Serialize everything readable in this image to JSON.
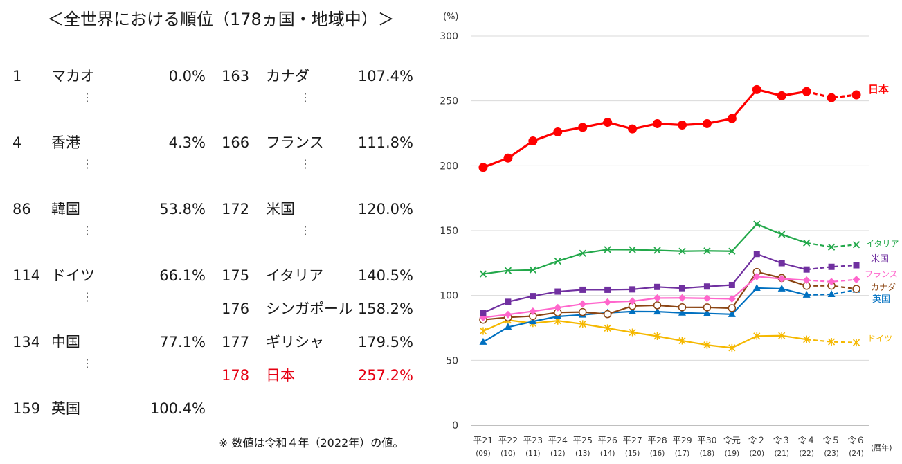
{
  "title": "＜全世界における順位（178ヵ国・地域中）＞",
  "footnote": "※ 数値は令和４年（2022年）の値。",
  "ranking_left": [
    {
      "rank": "1",
      "country": "マカオ",
      "value": "0.0%"
    },
    {
      "rank": "4",
      "country": "香港",
      "value": "4.3%"
    },
    {
      "rank": "86",
      "country": "韓国",
      "value": "53.8%"
    },
    {
      "rank": "114",
      "country": "ドイツ",
      "value": "66.1%"
    },
    {
      "rank": "134",
      "country": "中国",
      "value": "77.1%"
    },
    {
      "rank": "159",
      "country": "英国",
      "value": "100.4%"
    }
  ],
  "ranking_right": [
    {
      "rank": "163",
      "country": "カナダ",
      "value": "107.4%"
    },
    {
      "rank": "166",
      "country": "フランス",
      "value": "111.8%"
    },
    {
      "rank": "172",
      "country": "米国",
      "value": "120.0%"
    },
    {
      "rank": "175",
      "country": "イタリア",
      "value": "140.5%"
    },
    {
      "rank": "176",
      "country": "シンガポール",
      "value": "158.2%"
    },
    {
      "rank": "177",
      "country": "ギリシャ",
      "value": "179.5%"
    },
    {
      "rank": "178",
      "country": "日本",
      "value": "257.2%"
    }
  ],
  "ellipsis": "⋮",
  "chart_data": {
    "type": "line",
    "ylabel": "(%)",
    "xlabel": "(暦年)",
    "ylim": [
      0,
      300
    ],
    "yticks": [
      "0",
      "50",
      "100",
      "150",
      "200",
      "250",
      "300"
    ],
    "categories": [
      "平21",
      "平22",
      "平23",
      "平24",
      "平25",
      "平26",
      "平27",
      "平28",
      "平29",
      "平30",
      "令元",
      "令２",
      "令３",
      "令４",
      "令５",
      "令６"
    ],
    "subcategories": [
      "(09)",
      "(10)",
      "(11)",
      "(12)",
      "(13)",
      "(14)",
      "(15)",
      "(16)",
      "(17)",
      "(18)",
      "(19)",
      "(20)",
      "(21)",
      "(22)",
      "(23)",
      "(24)"
    ],
    "forecast_from_index": 13,
    "series": [
      {
        "name": "日本",
        "color": "#ff0000",
        "marker": "circle-filled",
        "values": [
          198.7,
          205.9,
          219.1,
          226.1,
          229.6,
          233.5,
          228.4,
          232.5,
          231.4,
          232.5,
          236.4,
          258.7,
          253.9,
          257.2,
          252.4,
          254.6
        ]
      },
      {
        "name": "イタリア",
        "color": "#22a84a",
        "marker": "cross",
        "values": [
          116.6,
          119.2,
          119.7,
          126.5,
          132.5,
          135.4,
          135.3,
          134.8,
          134.1,
          134.4,
          134.1,
          155.0,
          147.1,
          140.5,
          137.3,
          139.2
        ]
      },
      {
        "name": "米国",
        "color": "#7030a0",
        "marker": "square",
        "values": [
          86.6,
          95.1,
          99.5,
          103.0,
          104.4,
          104.4,
          104.7,
          106.6,
          105.6,
          106.9,
          108.1,
          132.0,
          124.9,
          120.0,
          122.1,
          123.3
        ]
      },
      {
        "name": "フランス",
        "color": "#ff66cc",
        "marker": "diamond",
        "values": [
          83.0,
          85.3,
          87.8,
          90.6,
          93.4,
          94.9,
          95.6,
          98.0,
          98.1,
          97.8,
          97.4,
          114.6,
          112.9,
          111.8,
          110.6,
          112.3
        ]
      },
      {
        "name": "カナダ",
        "color": "#8b4513",
        "marker": "circle-open",
        "values": [
          81.3,
          83.1,
          84.1,
          86.9,
          87.2,
          85.6,
          91.9,
          92.4,
          90.9,
          90.8,
          90.2,
          118.2,
          113.5,
          107.4,
          107.5,
          105.1
        ]
      },
      {
        "name": "英国",
        "color": "#0070c0",
        "marker": "triangle",
        "values": [
          64.1,
          75.6,
          80.0,
          83.8,
          85.1,
          86.6,
          87.6,
          87.5,
          86.6,
          86.1,
          85.5,
          105.7,
          105.2,
          100.4,
          100.9,
          104.3
        ]
      },
      {
        "name": "ドイツ",
        "color": "#f5b800",
        "marker": "star",
        "values": [
          72.6,
          81.0,
          78.6,
          80.5,
          78.0,
          74.8,
          71.5,
          68.6,
          65.1,
          61.8,
          59.6,
          68.7,
          69.0,
          66.1,
          64.3,
          63.7
        ]
      }
    ]
  }
}
